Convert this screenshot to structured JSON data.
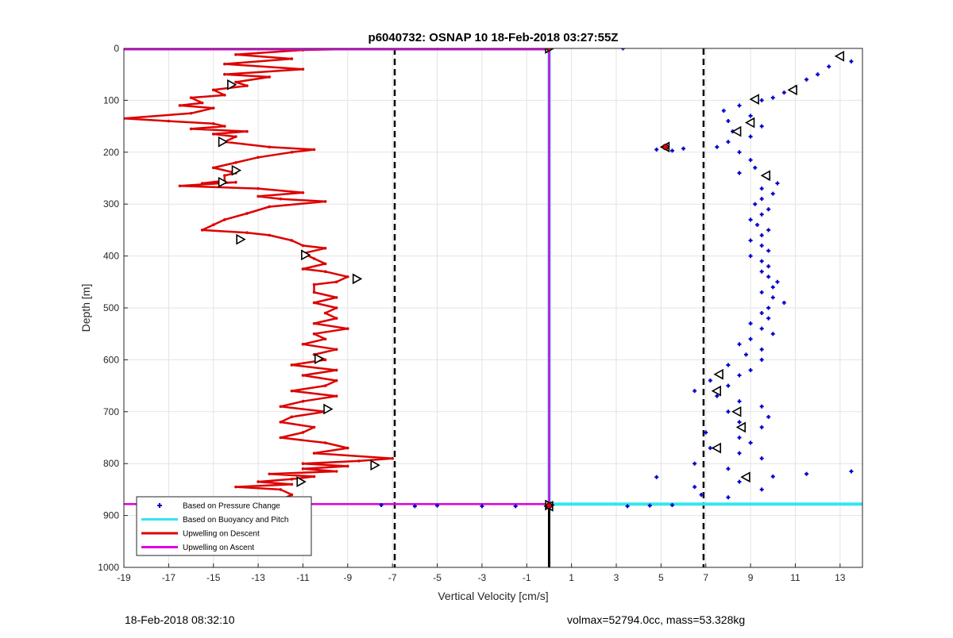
{
  "chart_data": {
    "type": "scatter",
    "title": "p6040732: OSNAP 10 18-Feb-2018 03:27:55Z",
    "xlabel": "Vertical Velocity [cm/s]",
    "ylabel": "Depth [m]",
    "xlim": [
      -19,
      14
    ],
    "ylim": [
      0,
      1000
    ],
    "y_reversed": true,
    "x_ticks": [
      -19,
      -17,
      -15,
      -13,
      -11,
      -9,
      -7,
      -5,
      -3,
      -1,
      1,
      3,
      5,
      7,
      9,
      11,
      13
    ],
    "y_ticks": [
      0,
      100,
      200,
      300,
      400,
      500,
      600,
      700,
      800,
      900,
      1000
    ],
    "grid": true,
    "legend_position": "bottom-left",
    "legend": [
      {
        "label": "Based on Pressure Change",
        "color": "#0000cc",
        "style": "marker"
      },
      {
        "label": "Based on Buoyancy and Pitch",
        "color": "#33e6ee",
        "style": "line"
      },
      {
        "label": "Upwelling on Descent",
        "color": "#dd0000",
        "style": "line"
      },
      {
        "label": "Upwelling on Ascent",
        "color": "#dd00dd",
        "style": "line"
      }
    ],
    "reference_lines": [
      {
        "x": -6.9,
        "style": "dashed",
        "color": "#000000"
      },
      {
        "x": 6.9,
        "style": "dashed",
        "color": "#000000"
      }
    ],
    "series": [
      {
        "name": "Upwelling on Descent",
        "color": "#dd0000",
        "type": "line",
        "points": [
          [
            -7.2,
            0
          ],
          [
            -8.6,
            1
          ],
          [
            -11.0,
            3
          ],
          [
            -14.0,
            12
          ],
          [
            -11.5,
            20
          ],
          [
            -14.5,
            30
          ],
          [
            -11.0,
            40
          ],
          [
            -14.5,
            50
          ],
          [
            -12.5,
            55
          ],
          [
            -14.0,
            65
          ],
          [
            -13.5,
            72
          ],
          [
            -15.0,
            80
          ],
          [
            -14.5,
            90
          ],
          [
            -16.0,
            95
          ],
          [
            -15.5,
            105
          ],
          [
            -16.5,
            110
          ],
          [
            -15.0,
            115
          ],
          [
            -16.0,
            125
          ],
          [
            -19.0,
            135
          ],
          [
            -17.0,
            140
          ],
          [
            -15.0,
            145
          ],
          [
            -14.5,
            150
          ],
          [
            -16.0,
            155
          ],
          [
            -13.5,
            160
          ],
          [
            -15.0,
            165
          ],
          [
            -14.0,
            170
          ],
          [
            -14.5,
            180
          ],
          [
            -12.5,
            190
          ],
          [
            -10.5,
            195
          ],
          [
            -11.5,
            200
          ],
          [
            -13.0,
            210
          ],
          [
            -14.0,
            220
          ],
          [
            -15.0,
            230
          ],
          [
            -14.0,
            240
          ],
          [
            -14.5,
            245
          ],
          [
            -14.5,
            255
          ],
          [
            -15.5,
            260
          ],
          [
            -14.0,
            258
          ],
          [
            -16.5,
            265
          ],
          [
            -13.0,
            270
          ],
          [
            -11.0,
            278
          ],
          [
            -13.0,
            285
          ],
          [
            -12.0,
            290
          ],
          [
            -10.0,
            295
          ],
          [
            -12.5,
            305
          ],
          [
            -13.5,
            318
          ],
          [
            -14.5,
            330
          ],
          [
            -15.0,
            340
          ],
          [
            -15.5,
            350
          ],
          [
            -13.5,
            355
          ],
          [
            -12.5,
            360
          ],
          [
            -11.5,
            370
          ],
          [
            -11.0,
            380
          ],
          [
            -10.0,
            385
          ],
          [
            -11.0,
            395
          ],
          [
            -10.5,
            405
          ],
          [
            -10.0,
            415
          ],
          [
            -11.0,
            425
          ],
          [
            -10.0,
            430
          ],
          [
            -9.0,
            440
          ],
          [
            -9.5,
            450
          ],
          [
            -10.5,
            455
          ],
          [
            -10.5,
            470
          ],
          [
            -9.5,
            480
          ],
          [
            -10.5,
            490
          ],
          [
            -9.5,
            500
          ],
          [
            -10.0,
            510
          ],
          [
            -9.5,
            520
          ],
          [
            -10.5,
            530
          ],
          [
            -9.0,
            540
          ],
          [
            -10.5,
            550
          ],
          [
            -10.0,
            560
          ],
          [
            -11.0,
            570
          ],
          [
            -9.5,
            580
          ],
          [
            -10.5,
            590
          ],
          [
            -10.0,
            600
          ],
          [
            -11.5,
            610
          ],
          [
            -9.5,
            620
          ],
          [
            -11.0,
            630
          ],
          [
            -9.5,
            640
          ],
          [
            -10.0,
            650
          ],
          [
            -11.5,
            660
          ],
          [
            -9.5,
            670
          ],
          [
            -11.0,
            680
          ],
          [
            -12.0,
            690
          ],
          [
            -10.0,
            700
          ],
          [
            -11.5,
            710
          ],
          [
            -12.0,
            720
          ],
          [
            -10.5,
            730
          ],
          [
            -11.0,
            740
          ],
          [
            -12.0,
            750
          ],
          [
            -10.0,
            760
          ],
          [
            -9.0,
            770
          ],
          [
            -10.5,
            780
          ],
          [
            -7.0,
            790
          ],
          [
            -8.5,
            795
          ],
          [
            -11.0,
            800
          ],
          [
            -9.0,
            805
          ],
          [
            -11.0,
            810
          ],
          [
            -9.5,
            815
          ],
          [
            -12.5,
            820
          ],
          [
            -10.5,
            825
          ],
          [
            -11.5,
            830
          ],
          [
            -13.0,
            835
          ],
          [
            -11.5,
            840
          ],
          [
            -14.0,
            845
          ],
          [
            -12.0,
            850
          ],
          [
            -11.5,
            860
          ],
          [
            -12.0,
            870
          ],
          [
            -11.5,
            878
          ]
        ]
      },
      {
        "name": "Based on Pressure Change",
        "color": "#0000cc",
        "type": "scatter",
        "points": [
          [
            3.3,
            0
          ],
          [
            13.5,
            25
          ],
          [
            12.5,
            35
          ],
          [
            12.0,
            50
          ],
          [
            11.5,
            60
          ],
          [
            11.0,
            75
          ],
          [
            10.5,
            85
          ],
          [
            10.0,
            95
          ],
          [
            9.5,
            100
          ],
          [
            8.5,
            110
          ],
          [
            7.8,
            120
          ],
          [
            9.0,
            130
          ],
          [
            8.0,
            140
          ],
          [
            9.5,
            150
          ],
          [
            8.2,
            160
          ],
          [
            9.0,
            170
          ],
          [
            8.0,
            180
          ],
          [
            7.5,
            190
          ],
          [
            6.0,
            193
          ],
          [
            5.5,
            197
          ],
          [
            4.8,
            195
          ],
          [
            8.5,
            200
          ],
          [
            9.0,
            215
          ],
          [
            9.2,
            230
          ],
          [
            8.5,
            240
          ],
          [
            9.8,
            250
          ],
          [
            10.2,
            260
          ],
          [
            9.5,
            270
          ],
          [
            10.0,
            280
          ],
          [
            9.5,
            290
          ],
          [
            9.2,
            300
          ],
          [
            9.8,
            310
          ],
          [
            9.5,
            320
          ],
          [
            9.0,
            330
          ],
          [
            9.3,
            340
          ],
          [
            9.8,
            350
          ],
          [
            9.5,
            360
          ],
          [
            9.0,
            370
          ],
          [
            9.5,
            380
          ],
          [
            9.8,
            390
          ],
          [
            9.0,
            400
          ],
          [
            9.5,
            410
          ],
          [
            9.8,
            420
          ],
          [
            9.5,
            430
          ],
          [
            9.8,
            440
          ],
          [
            10.2,
            450
          ],
          [
            10.0,
            460
          ],
          [
            9.5,
            470
          ],
          [
            10.0,
            480
          ],
          [
            10.5,
            490
          ],
          [
            9.8,
            500
          ],
          [
            9.5,
            510
          ],
          [
            9.8,
            520
          ],
          [
            9.0,
            530
          ],
          [
            9.5,
            540
          ],
          [
            10.0,
            550
          ],
          [
            9.0,
            560
          ],
          [
            8.5,
            570
          ],
          [
            9.5,
            580
          ],
          [
            8.8,
            590
          ],
          [
            9.5,
            600
          ],
          [
            8.0,
            610
          ],
          [
            9.0,
            620
          ],
          [
            8.5,
            630
          ],
          [
            7.2,
            640
          ],
          [
            8.0,
            650
          ],
          [
            6.5,
            660
          ],
          [
            7.5,
            670
          ],
          [
            8.5,
            680
          ],
          [
            9.5,
            690
          ],
          [
            8.0,
            700
          ],
          [
            9.8,
            710
          ],
          [
            8.5,
            720
          ],
          [
            9.5,
            730
          ],
          [
            7.0,
            740
          ],
          [
            8.5,
            750
          ],
          [
            9.0,
            760
          ],
          [
            7.2,
            770
          ],
          [
            8.5,
            780
          ],
          [
            9.5,
            790
          ],
          [
            6.5,
            800
          ],
          [
            8.0,
            810
          ],
          [
            13.5,
            815
          ],
          [
            11.5,
            820
          ],
          [
            10.0,
            825
          ],
          [
            4.8,
            826
          ],
          [
            8.5,
            835
          ],
          [
            6.5,
            845
          ],
          [
            9.5,
            850
          ],
          [
            6.8,
            860
          ],
          [
            8.0,
            865
          ],
          [
            5.5,
            880
          ],
          [
            4.5,
            881
          ],
          [
            3.5,
            882
          ],
          [
            -1.5,
            882
          ],
          [
            -3.0,
            882
          ],
          [
            -5.0,
            881
          ],
          [
            -6.0,
            882
          ],
          [
            -7.5,
            880
          ]
        ]
      },
      {
        "name": "Based on Buoyancy and Pitch",
        "color": "#33e6ee",
        "type": "line",
        "points": [
          [
            0,
            0
          ],
          [
            0,
            878
          ],
          [
            14,
            878
          ]
        ]
      },
      {
        "name": "Upwelling on Ascent",
        "color": "#dd00dd",
        "type": "line",
        "points": [
          [
            -19,
            2
          ],
          [
            0,
            2
          ],
          [
            0,
            878
          ],
          [
            -19,
            878
          ]
        ]
      }
    ],
    "markers": {
      "descent": [
        [
          0,
          0
        ],
        [
          -14.2,
          70
        ],
        [
          -14.6,
          180
        ],
        [
          -14.0,
          235
        ],
        [
          -14.6,
          258
        ],
        [
          -13.8,
          368
        ],
        [
          -10.9,
          398
        ],
        [
          -8.6,
          444
        ],
        [
          -10.3,
          598
        ],
        [
          -9.9,
          695
        ],
        [
          -7.8,
          803
        ],
        [
          -11.1,
          835
        ],
        [
          -11.0,
          876
        ],
        [
          0,
          880
        ]
      ],
      "ascent": [
        [
          13.0,
          15
        ],
        [
          10.9,
          80
        ],
        [
          9.2,
          98
        ],
        [
          9.0,
          143
        ],
        [
          8.4,
          160
        ],
        [
          5.2,
          190
        ],
        [
          9.7,
          245
        ],
        [
          7.6,
          628
        ],
        [
          7.5,
          660
        ],
        [
          8.4,
          700
        ],
        [
          8.6,
          730
        ],
        [
          7.5,
          770
        ],
        [
          8.8,
          826
        ],
        [
          0,
          882
        ]
      ]
    }
  },
  "footer": {
    "left": "18-Feb-2018 08:32:10",
    "right": "volmax=52794.0cc, mass=53.328kg"
  }
}
